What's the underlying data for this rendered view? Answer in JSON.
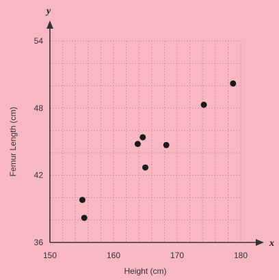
{
  "chart_data": {
    "type": "scatter",
    "title": "",
    "xlabel": "Height (cm)",
    "ylabel": "Femur Length (cm)",
    "x_axis_var": "x",
    "y_axis_var": "y",
    "xlim": [
      150,
      180
    ],
    "ylim": [
      36,
      54
    ],
    "xticks": [
      150,
      160,
      170,
      180
    ],
    "yticks": [
      36,
      42,
      48,
      54
    ],
    "x_tick_labels": [
      "150",
      "160",
      "170",
      "180"
    ],
    "y_tick_labels": [
      "36",
      "42",
      "48",
      "54"
    ],
    "grid": true,
    "points": [
      {
        "x": 155.1,
        "y": 39.8
      },
      {
        "x": 155.4,
        "y": 38.2
      },
      {
        "x": 163.8,
        "y": 44.8
      },
      {
        "x": 164.6,
        "y": 45.4
      },
      {
        "x": 165.0,
        "y": 42.7
      },
      {
        "x": 168.3,
        "y": 44.7
      },
      {
        "x": 174.2,
        "y": 48.3
      },
      {
        "x": 178.8,
        "y": 50.2
      }
    ],
    "colors": {
      "background": "#f7b8c4",
      "grid": "#e48a9c",
      "axis": "#333333",
      "point": "#1a1a1a"
    }
  }
}
